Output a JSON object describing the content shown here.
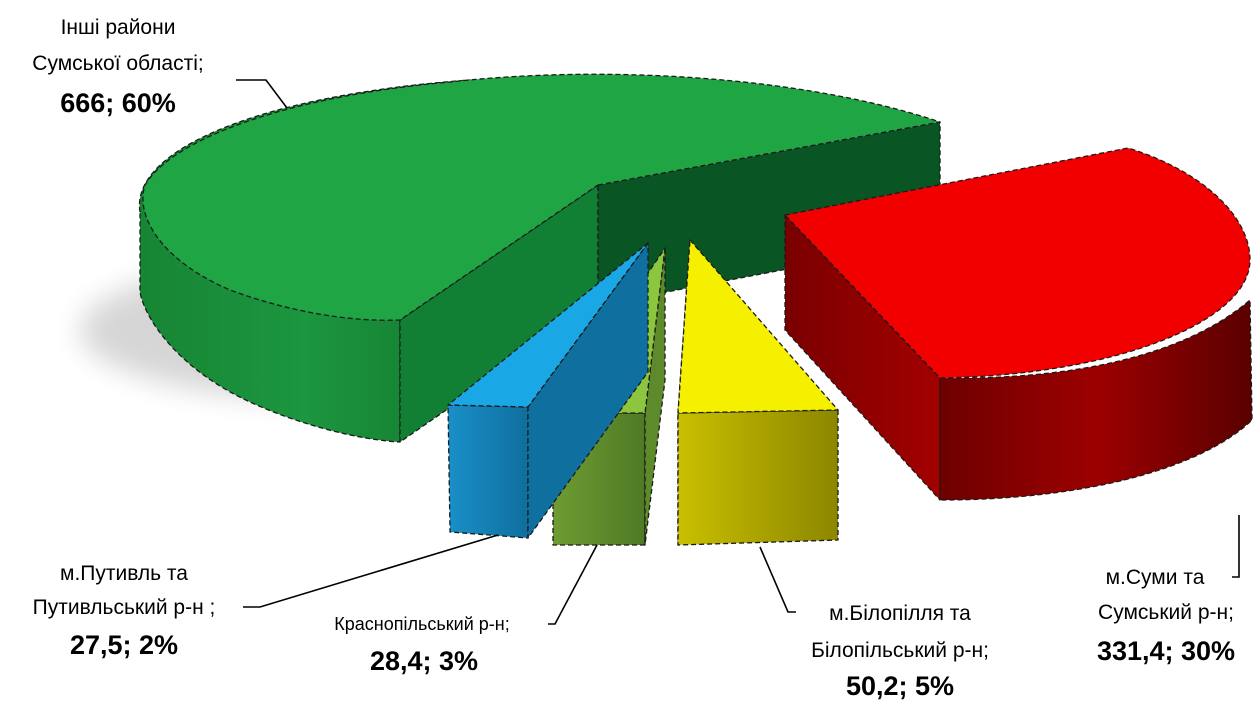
{
  "chart_data": {
    "type": "pie",
    "style": "3d-exploded",
    "slices": [
      {
        "key": "sumy",
        "label_lines": [
          "м.Суми та",
          "Сумський р-н;"
        ],
        "value": 331.4,
        "value_text": "331,4",
        "percent": 30,
        "color": "#f20000"
      },
      {
        "key": "bilopillia",
        "label_lines": [
          "м.Білопілля та",
          "Білопільський р-н;"
        ],
        "value": 50.2,
        "value_text": "50,2",
        "percent": 5,
        "color": "#f5f000"
      },
      {
        "key": "krasnopillia",
        "label_lines": [
          "Краснопільський р-н;"
        ],
        "value": 28.4,
        "value_text": "28,4",
        "percent": 3,
        "color": "#8cc63f"
      },
      {
        "key": "putyvl",
        "label_lines": [
          "м.Путивль та",
          "Путивльський р-н ;"
        ],
        "value": 27.5,
        "value_text": "27,5",
        "percent": 2,
        "color": "#1aa7e6"
      },
      {
        "key": "other",
        "label_lines": [
          "Інші райони",
          "Сумської області;"
        ],
        "value": 666,
        "value_text": "666",
        "percent": 60,
        "color": "#1fa544"
      }
    ]
  }
}
